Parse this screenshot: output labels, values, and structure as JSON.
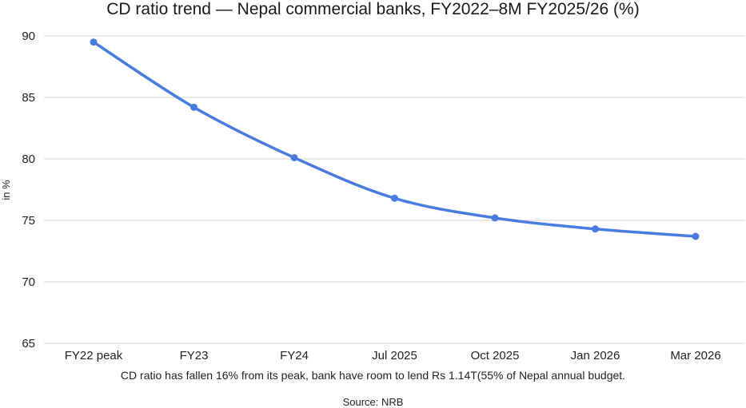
{
  "chart_data": {
    "type": "line",
    "title": "CD ratio trend — Nepal commercial banks, FY2022–8M FY2025/26 (%)",
    "ylabel": "in %",
    "xlabel": "",
    "categories": [
      "FY22 peak",
      "FY23",
      "FY24",
      "Jul 2025",
      "Oct 2025",
      "Jan 2026",
      "Mar 2026"
    ],
    "series": [
      {
        "name": "CD ratio",
        "values": [
          89.5,
          84.2,
          80.1,
          76.8,
          75.2,
          74.3,
          73.7
        ],
        "color": "#4a7ce0"
      }
    ],
    "ylim": [
      65,
      90
    ],
    "yticks": [
      65,
      70,
      75,
      80,
      85,
      90
    ],
    "grid": true,
    "legend": "none",
    "caption": "CD ratio has fallen 16% from its peak, bank have room to lend Rs 1.14T(55% of Nepal annual budget.",
    "source": "Source: NRB"
  }
}
